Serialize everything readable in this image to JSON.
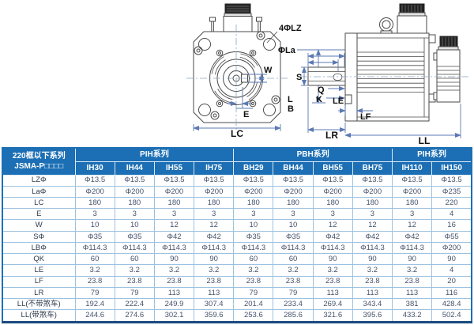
{
  "drawing": {
    "labels": {
      "four_lz": "4ΦLZ",
      "la": "ΦLa",
      "w": "W",
      "e": "E",
      "lc": "LC",
      "s": "S",
      "q": "Q",
      "k": "K",
      "l": "L",
      "b": "B",
      "le": "LE",
      "lf": "LF",
      "lr": "LR",
      "ll": "LL"
    },
    "colors": {
      "part_line": "#4a4a4a",
      "dim_line": "#5b79b4",
      "center_line": "#8aa5c4"
    }
  },
  "table": {
    "corner": {
      "line1": "220框以下系列",
      "line2": "JSMA-P□□□□"
    },
    "groups": [
      {
        "label": "PIH系列",
        "span": 4
      },
      {
        "label": "PBH系列",
        "span": 4
      },
      {
        "label": "PIH系列",
        "span": 2
      }
    ],
    "columns": [
      "IH30",
      "IH44",
      "IH55",
      "IH75",
      "BH29",
      "BH44",
      "BH55",
      "BH75",
      "IH110",
      "IH150"
    ],
    "rows": [
      {
        "label": "LZΦ",
        "values": [
          "Φ13.5",
          "Φ13.5",
          "Φ13.5",
          "Φ13.5",
          "Φ13.5",
          "Φ13.5",
          "Φ13.5",
          "Φ13.5",
          "Φ13.5",
          "Φ13.5"
        ]
      },
      {
        "label": "LaΦ",
        "values": [
          "Φ200",
          "Φ200",
          "Φ200",
          "Φ200",
          "Φ200",
          "Φ200",
          "Φ200",
          "Φ200",
          "Φ200",
          "Φ235"
        ]
      },
      {
        "label": "LC",
        "values": [
          "180",
          "180",
          "180",
          "180",
          "180",
          "180",
          "180",
          "180",
          "180",
          "220"
        ]
      },
      {
        "label": "E",
        "values": [
          "3",
          "3",
          "3",
          "3",
          "3",
          "3",
          "3",
          "3",
          "3",
          "4"
        ]
      },
      {
        "label": "W",
        "values": [
          "10",
          "10",
          "12",
          "12",
          "10",
          "10",
          "12",
          "12",
          "12",
          "16"
        ]
      },
      {
        "label": "SΦ",
        "values": [
          "Φ35",
          "Φ35",
          "Φ42",
          "Φ42",
          "Φ35",
          "Φ35",
          "Φ42",
          "Φ42",
          "Φ42",
          "Φ55"
        ]
      },
      {
        "label": "LBΦ",
        "values": [
          "Φ114.3",
          "Φ114.3",
          "Φ114.3",
          "Φ114.3",
          "Φ114.3",
          "Φ114.3",
          "Φ114.3",
          "Φ114.3",
          "Φ114.3",
          "Φ200"
        ]
      },
      {
        "label": "QK",
        "values": [
          "60",
          "60",
          "90",
          "90",
          "60",
          "60",
          "90",
          "90",
          "90",
          "90"
        ]
      },
      {
        "label": "LE",
        "values": [
          "3.2",
          "3.2",
          "3.2",
          "3.2",
          "3.2",
          "3.2",
          "3.2",
          "3.2",
          "3.2",
          "4"
        ]
      },
      {
        "label": "LF",
        "values": [
          "23.8",
          "23.8",
          "23.8",
          "23.8",
          "23.8",
          "23.8",
          "23.8",
          "23.8",
          "23.8",
          "20"
        ]
      },
      {
        "label": "LR",
        "values": [
          "79",
          "79",
          "113",
          "113",
          "79",
          "79",
          "113",
          "113",
          "113",
          "116"
        ]
      },
      {
        "label": "LL(不带煞车)",
        "values": [
          "192.4",
          "222.4",
          "249.9",
          "307.4",
          "201.4",
          "233.4",
          "269.4",
          "343.4",
          "381",
          "428.4"
        ]
      },
      {
        "label": "LL(带煞车)",
        "values": [
          "244.6",
          "274.6",
          "302.1",
          "359.6",
          "253.6",
          "285.6",
          "321.6",
          "395.6",
          "433.2",
          "502.4"
        ]
      }
    ],
    "colors": {
      "header_bg": "#1c6fb4",
      "grid": "#9dc2e1",
      "outer_border": "#1b4a80"
    }
  }
}
